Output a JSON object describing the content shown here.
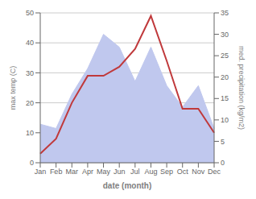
{
  "chart_data": {
    "type": "line",
    "categories": [
      "Jan",
      "Feb",
      "Mar",
      "Apr",
      "May",
      "Jun",
      "Jul",
      "Aug",
      "Sep",
      "Oct",
      "Nov",
      "Dec"
    ],
    "series": [
      {
        "type": "area",
        "color": "#c0c8ee",
        "axis": "y2",
        "values": [
          9,
          8,
          16,
          22,
          30,
          27,
          19,
          27,
          18,
          13,
          18,
          8
        ]
      },
      {
        "type": "line",
        "color": "#c0393b",
        "values": [
          3,
          8,
          20,
          29,
          29,
          32,
          38,
          49,
          34,
          18,
          18,
          10
        ]
      }
    ],
    "xlabel": "date (month)",
    "ylabel": "max temp (C)",
    "y2label": "med. precipitation (kg/m2)",
    "ylim": [
      0,
      50
    ],
    "yticks": [
      0,
      10,
      20,
      30,
      40,
      50
    ],
    "y2lim": [
      0,
      35
    ],
    "y2ticks": [
      0,
      5,
      10,
      15,
      20,
      25,
      30,
      35
    ],
    "grid": true
  }
}
